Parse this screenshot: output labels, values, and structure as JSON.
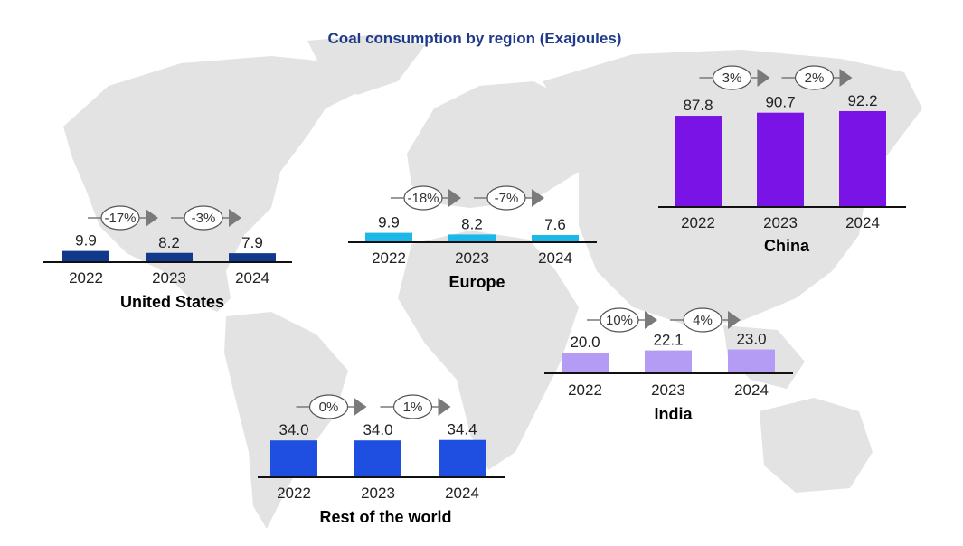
{
  "title": "Coal consumption by region (Exajoules)",
  "colors": {
    "title": "#1f3a8a",
    "map": "#e3e3e3",
    "arrow": "#7a7a7a",
    "axis": "#111111"
  },
  "chart_data": {
    "type": "bar",
    "title": "Coal consumption by region (Exajoules)",
    "unit": "Exajoules",
    "categories": [
      "2022",
      "2023",
      "2024"
    ],
    "series": [
      {
        "name": "United States",
        "color": "#123a8c",
        "values": [
          9.9,
          8.2,
          7.9
        ],
        "changes": [
          "-17%",
          "-3%"
        ]
      },
      {
        "name": "Europe",
        "color": "#1cb8e8",
        "values": [
          9.9,
          8.2,
          7.6
        ],
        "changes": [
          "-18%",
          "-7%"
        ]
      },
      {
        "name": "China",
        "color": "#7a14e6",
        "values": [
          87.8,
          90.7,
          92.2
        ],
        "changes": [
          "3%",
          "2%"
        ]
      },
      {
        "name": "India",
        "color": "#b49cf5",
        "values": [
          20.0,
          22.1,
          23.0
        ],
        "changes": [
          "10%",
          "4%"
        ]
      },
      {
        "name": "Rest of the world",
        "color": "#1f4fe0",
        "values": [
          34.0,
          34.0,
          34.4
        ],
        "changes": [
          "0%",
          "1%"
        ]
      }
    ]
  }
}
